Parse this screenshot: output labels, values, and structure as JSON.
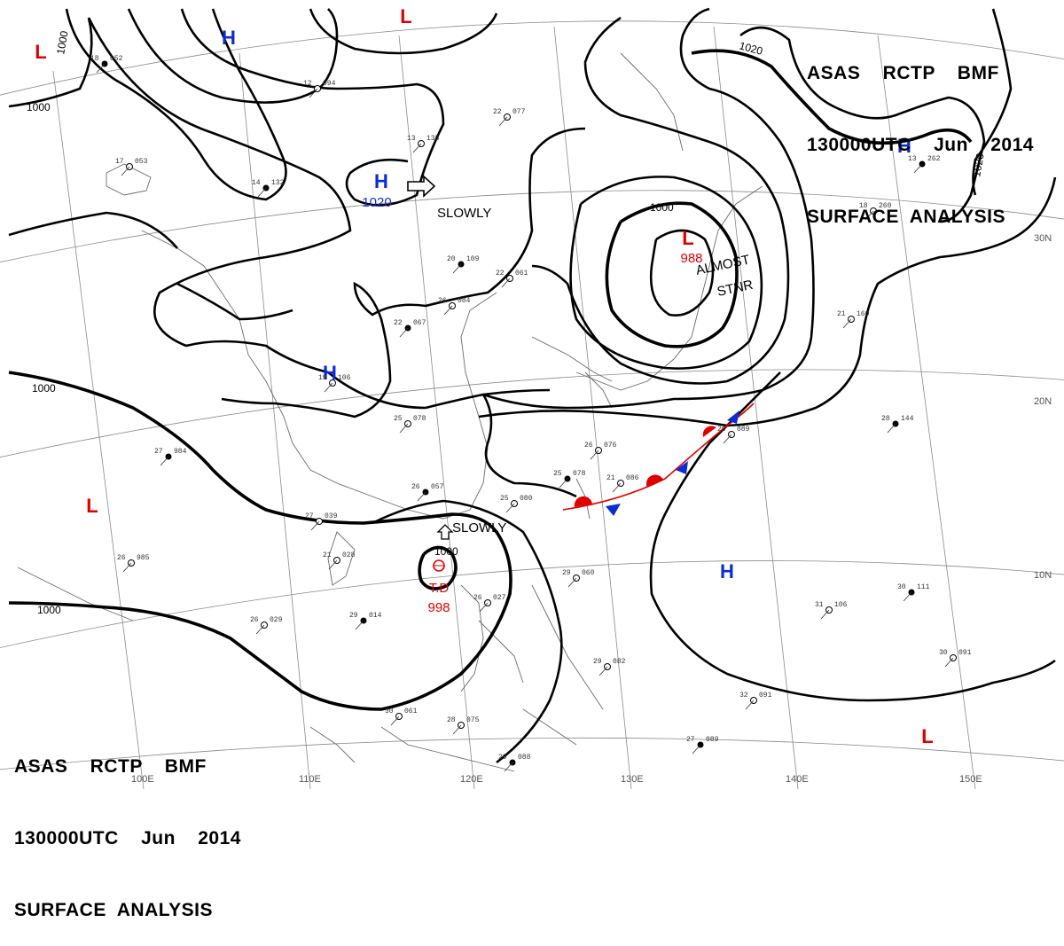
{
  "header": {
    "line1": "ASAS    RCTP    BMF",
    "line2": "130000UTC    Jun    2014",
    "line3": "SURFACE  ANALYSIS"
  },
  "colors": {
    "high": "#0a2bd6",
    "low": "#e00000",
    "warm_front": "#e00000",
    "cold_front": "#0a2bd6",
    "isobar": "#000000",
    "grid": "#8a8a8a",
    "coast": "#6a6a6a"
  },
  "grid_labels": {
    "lon": [
      "100E",
      "110E",
      "120E",
      "130E",
      "140E",
      "150E"
    ],
    "lat": [
      "30N",
      "20N",
      "10N"
    ]
  },
  "isobar_labels": [
    "1000",
    "1000",
    "1000",
    "1000",
    "1000",
    "1000",
    "1020",
    "1020"
  ],
  "pressure_centers": [
    {
      "type": "L",
      "color": "low"
    },
    {
      "type": "L",
      "color": "low"
    },
    {
      "type": "H",
      "color": "high"
    },
    {
      "type": "H",
      "color": "high",
      "value": "1020"
    },
    {
      "type": "H",
      "color": "high"
    },
    {
      "type": "L",
      "color": "low",
      "value": "988"
    },
    {
      "type": "H",
      "color": "high"
    },
    {
      "type": "L",
      "color": "low"
    },
    {
      "type": "H",
      "color": "high"
    },
    {
      "type": "L",
      "color": "low"
    }
  ],
  "tropical_depression": {
    "label": "T.D",
    "value": "998"
  },
  "movement_notes": [
    "SLOWLY",
    "SLOWLY",
    "ALMOST",
    "STNR"
  ],
  "station_samples": [
    {
      "t": "18",
      "p": "052"
    },
    {
      "t": "12",
      "p": "094"
    },
    {
      "t": "17",
      "p": "053"
    },
    {
      "t": "14",
      "p": "132"
    },
    {
      "t": "13",
      "p": "135"
    },
    {
      "t": "22",
      "p": "077"
    },
    {
      "t": "20",
      "p": "109"
    },
    {
      "t": "22",
      "p": "061"
    },
    {
      "t": "26",
      "p": "084"
    },
    {
      "t": "22",
      "p": "067"
    },
    {
      "t": "19",
      "p": "106"
    },
    {
      "t": "25",
      "p": "078"
    },
    {
      "t": "26",
      "p": "057"
    },
    {
      "t": "25",
      "p": "080"
    },
    {
      "t": "26",
      "p": "076"
    },
    {
      "t": "25",
      "p": "078"
    },
    {
      "t": "21",
      "p": "086"
    },
    {
      "t": "26",
      "p": "089"
    },
    {
      "t": "28",
      "p": "144"
    },
    {
      "t": "21",
      "p": "160"
    },
    {
      "t": "18",
      "p": "260"
    },
    {
      "t": "13",
      "p": "262"
    },
    {
      "t": "29",
      "p": "060"
    },
    {
      "t": "26",
      "p": "027"
    },
    {
      "t": "29",
      "p": "014"
    },
    {
      "t": "26",
      "p": "029"
    },
    {
      "t": "26",
      "p": "985"
    },
    {
      "t": "27",
      "p": "984"
    },
    {
      "t": "30",
      "p": "061"
    },
    {
      "t": "28",
      "p": "075"
    },
    {
      "t": "27",
      "p": "089"
    },
    {
      "t": "32",
      "p": "091"
    },
    {
      "t": "31",
      "p": "106"
    },
    {
      "t": "30",
      "p": "111"
    },
    {
      "t": "30",
      "p": "091"
    },
    {
      "t": "29",
      "p": "082"
    },
    {
      "t": "29",
      "p": "088"
    },
    {
      "t": "27",
      "p": "039"
    },
    {
      "t": "21",
      "p": "028"
    }
  ]
}
